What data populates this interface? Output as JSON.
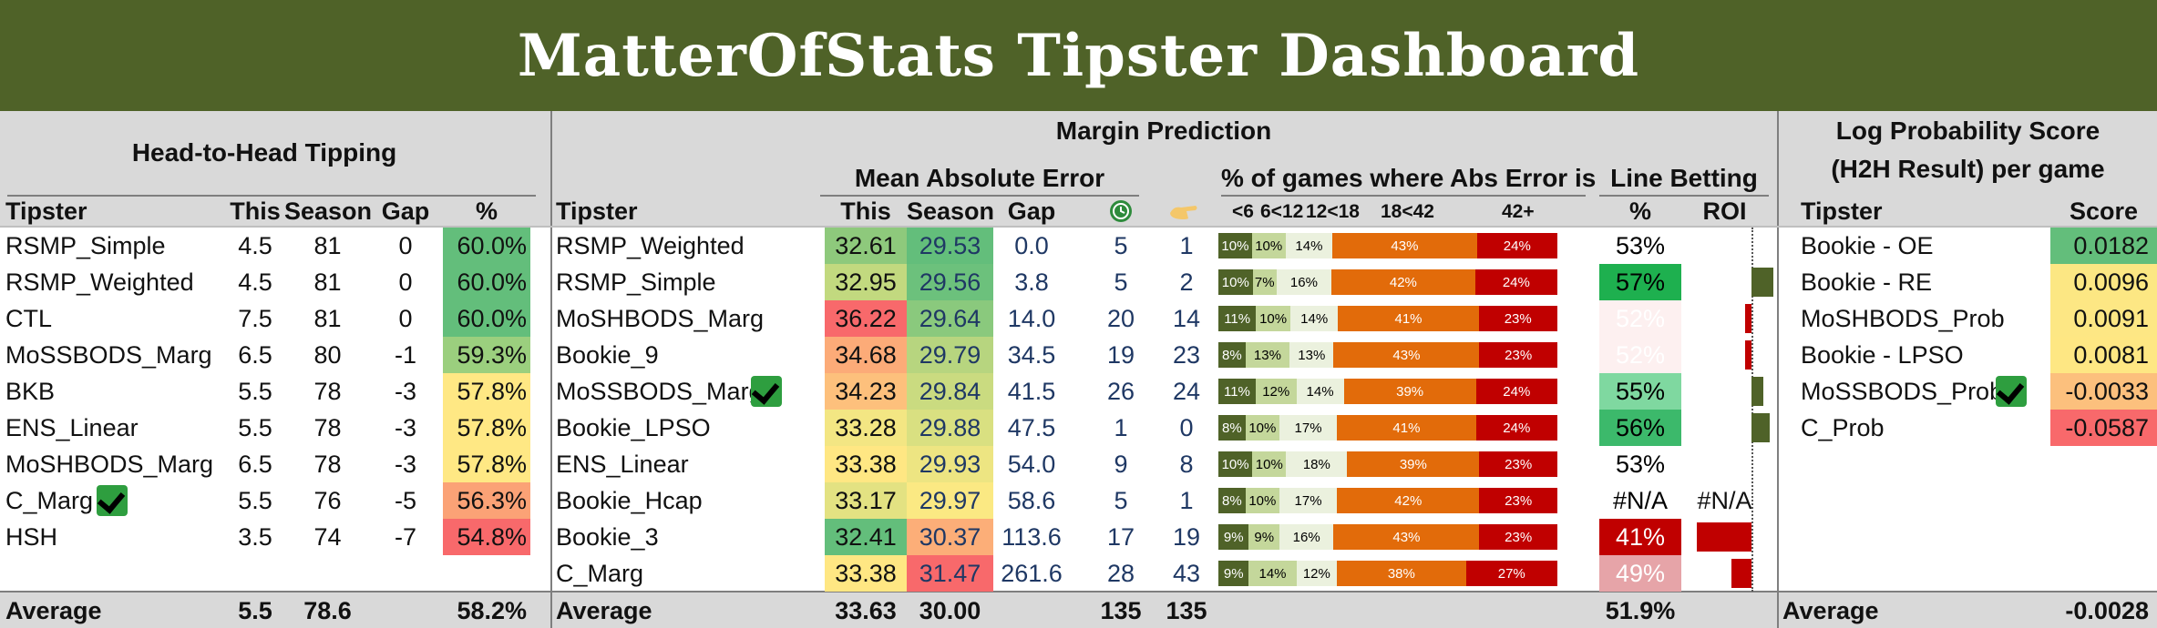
{
  "title": "MatterOfStats Tipster Dashboard",
  "h2h": {
    "section_title": "Head-to-Head Tipping",
    "columns": [
      "Tipster",
      "This",
      "Season",
      "Gap",
      "%"
    ],
    "rows": [
      {
        "tipster": "RSMP_Simple",
        "this": "4.5",
        "season": "81",
        "gap": "0",
        "pct": "60.0%",
        "color": "#63be7b",
        "check": false
      },
      {
        "tipster": "RSMP_Weighted",
        "this": "4.5",
        "season": "81",
        "gap": "0",
        "pct": "60.0%",
        "color": "#63be7b",
        "check": false
      },
      {
        "tipster": "CTL",
        "this": "7.5",
        "season": "81",
        "gap": "0",
        "pct": "60.0%",
        "color": "#63be7b",
        "check": false
      },
      {
        "tipster": "MoSSBODS_Marg",
        "this": "6.5",
        "season": "80",
        "gap": "-1",
        "pct": "59.3%",
        "color": "#9bcf7e",
        "check": false
      },
      {
        "tipster": "BKB",
        "this": "5.5",
        "season": "78",
        "gap": "-3",
        "pct": "57.8%",
        "color": "#ffe884",
        "check": false
      },
      {
        "tipster": "ENS_Linear",
        "this": "5.5",
        "season": "78",
        "gap": "-3",
        "pct": "57.8%",
        "color": "#ffe884",
        "check": false
      },
      {
        "tipster": "MoSHBODS_Marg",
        "this": "6.5",
        "season": "78",
        "gap": "-3",
        "pct": "57.8%",
        "color": "#ffe884",
        "check": false
      },
      {
        "tipster": "C_Marg",
        "this": "5.5",
        "season": "76",
        "gap": "-5",
        "pct": "56.3%",
        "color": "#fba276",
        "check": true
      },
      {
        "tipster": "HSH",
        "this": "3.5",
        "season": "74",
        "gap": "-7",
        "pct": "54.8%",
        "color": "#f8696b",
        "check": false
      }
    ],
    "avg": {
      "label": "Average",
      "this": "5.5",
      "season": "78.6",
      "pct": "58.2%"
    }
  },
  "margin": {
    "section_title": "Margin Prediction",
    "mae_title": "Mean Absolute Error",
    "dist_title": "% of games where Abs Error is",
    "line_title": "Line Betting",
    "columns": {
      "tipster": "Tipster",
      "this": "This",
      "season": "Season",
      "gap": "Gap",
      "pct": "%",
      "roi": "ROI"
    },
    "bucket_labels": [
      "<6",
      "6<12",
      "12<18",
      "18<42",
      "42+"
    ],
    "rows": [
      {
        "tipster": "RSMP_Weighted",
        "this": "32.61",
        "this_color": "#8ec97c",
        "season": "29.53",
        "season_color": "#63be7b",
        "gap": "0.0",
        "c1": "5",
        "c2": "1",
        "dist": [
          "10%",
          "10%",
          "14%",
          "43%",
          "24%"
        ],
        "dist_vals": [
          10,
          10,
          14,
          43,
          24
        ],
        "line_pct": "53%",
        "line_color": "#ffffff",
        "line_text_color": "#000000",
        "roi": 0,
        "check": false
      },
      {
        "tipster": "RSMP_Simple",
        "this": "32.95",
        "this_color": "#c2d97f",
        "season": "29.56",
        "season_color": "#6cc17c",
        "gap": "3.8",
        "c1": "5",
        "c2": "2",
        "dist": [
          "10%",
          "7%",
          "16%",
          "42%",
          "24%"
        ],
        "dist_vals": [
          10,
          7,
          16,
          42,
          24
        ],
        "line_pct": "57%",
        "line_color": "#1eb04f",
        "line_text_color": "#000000",
        "roi": 0.22,
        "check": false
      },
      {
        "tipster": "MoSHBODS_Marg",
        "this": "36.22",
        "this_color": "#f8696b",
        "season": "29.64",
        "season_color": "#8ac97d",
        "gap": "14.0",
        "c1": "20",
        "c2": "14",
        "dist": [
          "11%",
          "10%",
          "14%",
          "41%",
          "23%"
        ],
        "dist_vals": [
          11,
          10,
          14,
          41,
          23
        ],
        "line_pct": "52%",
        "line_color": "#fdf0f0",
        "line_text_color": "#ffffff",
        "roi": -0.06,
        "check": false
      },
      {
        "tipster": "Bookie_9",
        "this": "34.68",
        "this_color": "#fcab78",
        "season": "29.79",
        "season_color": "#b7d57f",
        "gap": "34.5",
        "c1": "19",
        "c2": "23",
        "dist": [
          "8%",
          "13%",
          "13%",
          "43%",
          "23%"
        ],
        "dist_vals": [
          8,
          13,
          13,
          43,
          23
        ],
        "line_pct": "52%",
        "line_color": "#fdf0f0",
        "line_text_color": "#ffffff",
        "roi": -0.06,
        "check": false
      },
      {
        "tipster": "MoSSBODS_Marg",
        "this": "34.23",
        "this_color": "#fdc07c",
        "season": "29.84",
        "season_color": "#cadb80",
        "gap": "41.5",
        "c1": "26",
        "c2": "24",
        "dist": [
          "11%",
          "12%",
          "14%",
          "39%",
          "24%"
        ],
        "dist_vals": [
          11,
          12,
          14,
          39,
          24
        ],
        "line_pct": "55%",
        "line_color": "#7fd8a0",
        "line_text_color": "#000000",
        "roi": 0.12,
        "check": true
      },
      {
        "tipster": "Bookie_LPSO",
        "this": "33.28",
        "this_color": "#f3e683",
        "season": "29.88",
        "season_color": "#d9e081",
        "gap": "47.5",
        "c1": "1",
        "c2": "0",
        "dist": [
          "8%",
          "10%",
          "17%",
          "41%",
          "24%"
        ],
        "dist_vals": [
          8,
          10,
          17,
          41,
          24
        ],
        "line_pct": "56%",
        "line_color": "#3cb96b",
        "line_text_color": "#000000",
        "roi": 0.18,
        "check": false
      },
      {
        "tipster": "ENS_Linear",
        "this": "33.38",
        "this_color": "#ffe783",
        "season": "29.93",
        "season_color": "#ede582",
        "gap": "54.0",
        "c1": "9",
        "c2": "8",
        "dist": [
          "10%",
          "10%",
          "18%",
          "39%",
          "23%"
        ],
        "dist_vals": [
          10,
          10,
          18,
          39,
          23
        ],
        "line_pct": "53%",
        "line_color": "#ffffff",
        "line_text_color": "#000000",
        "roi": 0,
        "check": false
      },
      {
        "tipster": "Bookie_Hcap",
        "this": "33.17",
        "this_color": "#e3e282",
        "season": "29.97",
        "season_color": "#fbe983",
        "gap": "58.6",
        "c1": "5",
        "c2": "1",
        "dist": [
          "8%",
          "10%",
          "17%",
          "42%",
          "23%"
        ],
        "dist_vals": [
          8,
          10,
          17,
          42,
          23
        ],
        "line_pct": "#N/A",
        "line_color": "#ffffff",
        "line_text_color": "#000000",
        "roi": null,
        "roi_text": "#N/A",
        "check": false
      },
      {
        "tipster": "Bookie_3",
        "this": "32.41",
        "this_color": "#63be7b",
        "season": "30.37",
        "season_color": "#fcae78",
        "gap": "113.6",
        "c1": "17",
        "c2": "19",
        "dist": [
          "9%",
          "9%",
          "16%",
          "43%",
          "23%"
        ],
        "dist_vals": [
          9,
          9,
          16,
          43,
          23
        ],
        "line_pct": "41%",
        "line_color": "#c00000",
        "line_text_color": "#ffffff",
        "roi": -0.55,
        "check": false
      },
      {
        "tipster": "C_Marg",
        "this": "33.38",
        "this_color": "#ffe783",
        "season": "31.47",
        "season_color": "#f8696b",
        "gap": "261.6",
        "c1": "28",
        "c2": "43",
        "dist": [
          "9%",
          "14%",
          "12%",
          "38%",
          "27%"
        ],
        "dist_vals": [
          9,
          14,
          12,
          38,
          27
        ],
        "line_pct": "49%",
        "line_color": "#e6a4a8",
        "line_text_color": "#ffffff",
        "roi": -0.2,
        "check": false
      }
    ],
    "avg": {
      "label": "Average",
      "this": "33.63",
      "season": "30.00",
      "c1": "135",
      "c2": "135",
      "line_pct": "51.9%"
    }
  },
  "lps": {
    "title_line1": "Log Probability Score",
    "title_line2": "(H2H Result) per game",
    "columns": [
      "Tipster",
      "Score"
    ],
    "rows": [
      {
        "tipster": "Bookie - OE",
        "score": "0.0182",
        "color": "#63be7b",
        "check": false
      },
      {
        "tipster": "Bookie - RE",
        "score": "0.0096",
        "color": "#fce783",
        "check": false
      },
      {
        "tipster": "MoSHBODS_Prob",
        "score": "0.0091",
        "color": "#fde784",
        "check": false
      },
      {
        "tipster": "Bookie - LPSO",
        "score": "0.0081",
        "color": "#fee783",
        "check": false
      },
      {
        "tipster": "MoSSBODS_Prob",
        "score": "-0.0033",
        "color": "#fcc07d",
        "check": true
      },
      {
        "tipster": "C_Prob",
        "score": "-0.0587",
        "color": "#f8696b",
        "check": false
      }
    ],
    "avg": {
      "label": "Average",
      "score": "-0.0028"
    }
  },
  "colors": {
    "banner": "#4f6228",
    "bucket_colors": [
      "#4f6228",
      "#c4d79b",
      "#ebf1de",
      "#e26b0a",
      "#c00000"
    ],
    "roi_positive": "#4f6228",
    "roi_negative": "#c00000",
    "header_grey": "#d9d9d9"
  }
}
